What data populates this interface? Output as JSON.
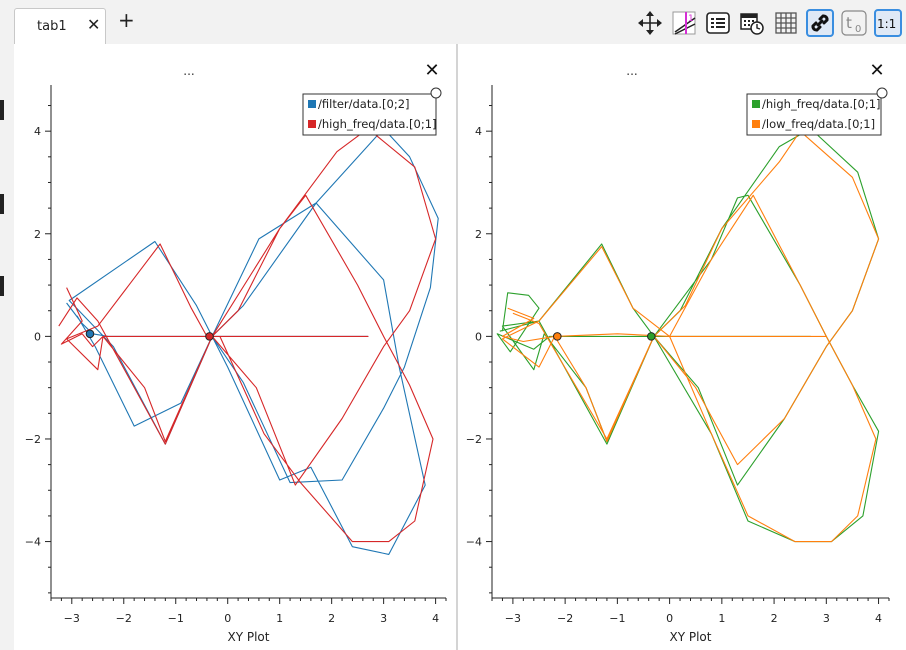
{
  "tabs": [
    {
      "label": "tab1",
      "close": "✕"
    }
  ],
  "add_tab_label": "+",
  "toolbar": [
    "move-arrows-icon",
    "plot-zoom-icon",
    "legend-list-icon",
    "time-calendar-icon",
    "grid-icon",
    "link-icon",
    "t0-icon",
    "ratio-1to1-icon"
  ],
  "toolbar_text": {
    "t0": "t",
    "t0_sub": "0",
    "ratio": "1:1"
  },
  "chart_data": [
    {
      "type": "scatter",
      "title": "...",
      "xlabel": "XY Plot",
      "ylabel": "",
      "xlim": [
        -3.4,
        4.2
      ],
      "ylim": [
        -5.1,
        4.9
      ],
      "xticks": [
        -3,
        -2,
        -1,
        0,
        1,
        2,
        3,
        4
      ],
      "yticks": [
        -4,
        -2,
        0,
        2,
        4
      ],
      "legend_position": "top-right",
      "close_label": "✕",
      "series": [
        {
          "name": "/filter/data.[0;2]",
          "color": "#1f77b4",
          "points": [
            [
              -3.1,
              0.65
            ],
            [
              -2.8,
              0.25
            ],
            [
              -2.6,
              0.05
            ],
            [
              -2.3,
              0.0
            ],
            [
              -1.5,
              0.0
            ],
            [
              -0.6,
              0.0
            ],
            [
              0.8,
              0.0
            ],
            [
              2.0,
              0.0
            ],
            [
              2.7,
              0.0
            ],
            [
              2.7,
              0.0
            ],
            [
              -0.3,
              0.0
            ],
            [
              0.6,
              1.9
            ],
            [
              1.7,
              2.6
            ],
            [
              3.0,
              1.1
            ],
            [
              3.3,
              -0.6
            ],
            [
              3.8,
              -2.9
            ],
            [
              3.1,
              -4.25
            ],
            [
              2.4,
              -4.1
            ],
            [
              1.6,
              -2.55
            ],
            [
              1.0,
              -2.8
            ],
            [
              0.0,
              -0.6
            ],
            [
              -0.3,
              0.0
            ],
            [
              -0.6,
              0.6
            ],
            [
              -1.4,
              1.85
            ],
            [
              -3.05,
              0.7
            ],
            [
              -2.2,
              -0.2
            ],
            [
              -1.2,
              -2.1
            ],
            [
              -0.3,
              0.0
            ],
            [
              0.3,
              0.6
            ],
            [
              1.7,
              2.6
            ],
            [
              3.0,
              4.05
            ],
            [
              3.5,
              3.5
            ],
            [
              4.05,
              2.3
            ],
            [
              3.9,
              0.95
            ],
            [
              3.4,
              -0.6
            ],
            [
              3.0,
              -1.4
            ],
            [
              2.2,
              -2.8
            ],
            [
              1.2,
              -2.85
            ],
            [
              0.3,
              -0.9
            ],
            [
              -0.3,
              0.0
            ],
            [
              -0.9,
              -1.3
            ],
            [
              -1.8,
              -1.75
            ],
            [
              -2.55,
              -0.2
            ],
            [
              -2.9,
              0.4
            ]
          ],
          "marker": [
            -2.65,
            0.05
          ]
        },
        {
          "name": "/high_freq/data.[0;1]",
          "color": "#d62728",
          "points": [
            [
              -3.1,
              0.95
            ],
            [
              -2.8,
              0.3
            ],
            [
              -3.2,
              -0.15
            ],
            [
              -2.8,
              0.05
            ],
            [
              -2.6,
              -0.2
            ],
            [
              -2.4,
              0.0
            ],
            [
              -1.0,
              0.0
            ],
            [
              -0.3,
              0.0
            ],
            [
              0.7,
              0.0
            ],
            [
              2.0,
              0.0
            ],
            [
              2.7,
              0.0
            ],
            [
              -0.3,
              0.0
            ],
            [
              1.0,
              2.1
            ],
            [
              1.5,
              2.75
            ],
            [
              2.5,
              1.0
            ],
            [
              3.0,
              0.0
            ],
            [
              3.5,
              -0.95
            ],
            [
              3.95,
              -2.0
            ],
            [
              3.6,
              -3.6
            ],
            [
              3.1,
              -4.0
            ],
            [
              2.4,
              -4.0
            ],
            [
              1.4,
              -2.85
            ],
            [
              0.7,
              -1.9
            ],
            [
              -0.15,
              0.0
            ],
            [
              -0.4,
              0.0
            ],
            [
              -0.7,
              0.55
            ],
            [
              -1.3,
              1.8
            ],
            [
              -2.5,
              0.2
            ],
            [
              -3.1,
              -0.05
            ],
            [
              -2.5,
              -0.65
            ],
            [
              -2.4,
              0.0
            ],
            [
              -1.6,
              -1.0
            ],
            [
              -1.2,
              -2.05
            ],
            [
              -0.3,
              0.0
            ],
            [
              0.2,
              0.5
            ],
            [
              1.0,
              2.1
            ],
            [
              2.1,
              3.6
            ],
            [
              2.7,
              4.05
            ],
            [
              3.6,
              3.3
            ],
            [
              4.0,
              1.9
            ],
            [
              3.5,
              0.5
            ],
            [
              3.0,
              -0.2
            ],
            [
              2.2,
              -1.6
            ],
            [
              1.3,
              -2.9
            ],
            [
              0.55,
              -1.0
            ],
            [
              -0.3,
              0.0
            ],
            [
              -1.2,
              -2.1
            ],
            [
              -2.5,
              0.3
            ],
            [
              -2.9,
              0.75
            ],
            [
              -3.25,
              0.2
            ]
          ],
          "marker": [
            -0.35,
            0.0
          ]
        }
      ]
    },
    {
      "type": "scatter",
      "title": "...",
      "xlabel": "XY Plot",
      "ylabel": "",
      "xlim": [
        -3.4,
        4.2
      ],
      "ylim": [
        -5.1,
        4.9
      ],
      "xticks": [
        -3,
        -2,
        -1,
        0,
        1,
        2,
        3,
        4
      ],
      "yticks": [
        -4,
        -2,
        0,
        2,
        4
      ],
      "legend_position": "top-right",
      "close_label": "✕",
      "series": [
        {
          "name": "/high_freq/data.[0;1]",
          "color": "#2ca02c",
          "points": [
            [
              -3.2,
              0.1
            ],
            [
              -3.1,
              0.85
            ],
            [
              -2.7,
              0.8
            ],
            [
              -2.5,
              0.55
            ],
            [
              -3.05,
              -0.3
            ],
            [
              -3.3,
              0.05
            ],
            [
              -2.6,
              -0.25
            ],
            [
              -2.3,
              0.0
            ],
            [
              -1.0,
              0.0
            ],
            [
              -0.35,
              0.0
            ],
            [
              0.6,
              0.0
            ],
            [
              2.0,
              0.0
            ],
            [
              2.7,
              0.0
            ],
            [
              -0.3,
              0.0
            ],
            [
              0.8,
              1.5
            ],
            [
              1.3,
              2.7
            ],
            [
              1.5,
              2.75
            ],
            [
              2.5,
              1.0
            ],
            [
              3.0,
              0.0
            ],
            [
              3.5,
              -0.95
            ],
            [
              4.0,
              -1.85
            ],
            [
              3.7,
              -3.5
            ],
            [
              3.1,
              -4.0
            ],
            [
              2.4,
              -4.0
            ],
            [
              1.5,
              -3.6
            ],
            [
              0.8,
              -1.9
            ],
            [
              -0.3,
              0.0
            ],
            [
              -0.7,
              0.55
            ],
            [
              -1.3,
              1.8
            ],
            [
              -2.5,
              0.3
            ],
            [
              -3.2,
              0.2
            ],
            [
              -2.6,
              -0.65
            ],
            [
              -2.4,
              0.05
            ],
            [
              -1.6,
              -1.0
            ],
            [
              -1.2,
              -2.05
            ],
            [
              -0.3,
              0.0
            ],
            [
              0.2,
              0.5
            ],
            [
              1.0,
              2.1
            ],
            [
              2.1,
              3.7
            ],
            [
              2.7,
              4.05
            ],
            [
              3.6,
              3.2
            ],
            [
              4.0,
              1.9
            ],
            [
              3.5,
              0.5
            ],
            [
              3.0,
              -0.2
            ],
            [
              2.2,
              -1.6
            ],
            [
              1.3,
              -2.9
            ],
            [
              0.55,
              -1.0
            ],
            [
              -0.3,
              0.0
            ],
            [
              -1.2,
              -2.1
            ],
            [
              -2.5,
              0.3
            ],
            [
              -3.25,
              0.1
            ]
          ],
          "marker": [
            -0.35,
            0.0
          ]
        },
        {
          "name": "/low_freq/data.[0;1]",
          "color": "#ff7f0e",
          "points": [
            [
              -3.1,
              0.55
            ],
            [
              -2.6,
              0.35
            ],
            [
              -3.2,
              0.0
            ],
            [
              -2.8,
              -0.1
            ],
            [
              -2.2,
              0.0
            ],
            [
              -1.0,
              0.05
            ],
            [
              0.0,
              0.0
            ],
            [
              1.2,
              0.0
            ],
            [
              2.5,
              0.0
            ],
            [
              3.0,
              0.0
            ],
            [
              0.0,
              0.0
            ],
            [
              0.8,
              1.5
            ],
            [
              1.6,
              2.75
            ],
            [
              2.5,
              1.0
            ],
            [
              3.0,
              0.0
            ],
            [
              3.5,
              -0.95
            ],
            [
              3.95,
              -2.0
            ],
            [
              3.6,
              -3.5
            ],
            [
              3.1,
              -4.0
            ],
            [
              2.4,
              -4.0
            ],
            [
              1.5,
              -3.5
            ],
            [
              0.8,
              -1.9
            ],
            [
              0.0,
              0.0
            ],
            [
              -0.7,
              0.55
            ],
            [
              -1.3,
              1.75
            ],
            [
              -2.5,
              0.3
            ],
            [
              -3.2,
              -0.05
            ],
            [
              -2.5,
              -0.6
            ],
            [
              -2.2,
              0.0
            ],
            [
              -1.6,
              -1.0
            ],
            [
              -1.2,
              -2.05
            ],
            [
              -0.3,
              0.0
            ],
            [
              0.3,
              0.6
            ],
            [
              1.0,
              2.1
            ],
            [
              2.1,
              3.4
            ],
            [
              2.5,
              4.0
            ],
            [
              3.5,
              3.1
            ],
            [
              4.0,
              1.9
            ],
            [
              3.5,
              0.5
            ],
            [
              3.0,
              -0.2
            ],
            [
              2.2,
              -1.6
            ],
            [
              1.3,
              -2.5
            ],
            [
              0.5,
              -1.0
            ],
            [
              -0.3,
              0.0
            ],
            [
              -1.2,
              -2.0
            ],
            [
              -2.5,
              0.25
            ],
            [
              -3.0,
              0.45
            ]
          ],
          "marker": [
            -2.15,
            0.0
          ]
        }
      ]
    }
  ]
}
